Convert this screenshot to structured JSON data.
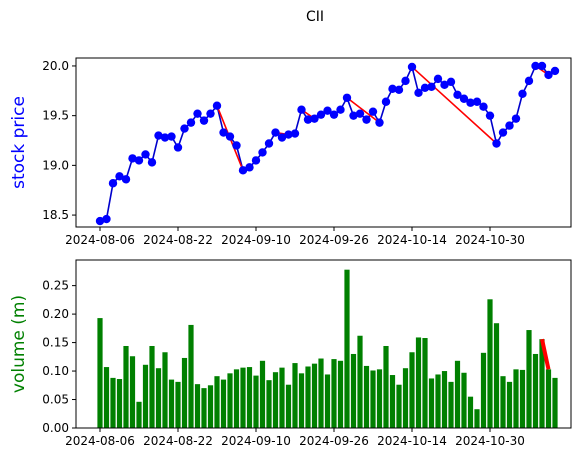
{
  "chart_data": [
    {
      "type": "line",
      "title": "CII",
      "xlabel": "",
      "ylabel": "stock price",
      "ylabel_color": "#0000ff",
      "line_color": "#0000cc",
      "marker_color": "#0000ff",
      "highlight_color": "#ff0000",
      "ylim": [
        18.38,
        20.08
      ],
      "yticks": [
        18.5,
        19.0,
        19.5,
        20.0
      ],
      "xticks": [
        "2024-08-06",
        "2024-08-22",
        "2024-09-10",
        "2024-09-26",
        "2024-10-14",
        "2024-10-30"
      ],
      "xtick_index": [
        0,
        12,
        24,
        36,
        48,
        60
      ],
      "series": [
        {
          "values": [
            18.44,
            18.46,
            18.82,
            18.89,
            18.86,
            19.07,
            19.05,
            19.11,
            19.03,
            19.3,
            19.28,
            19.29,
            19.18,
            19.37,
            19.43,
            19.52,
            19.45,
            19.52,
            19.6,
            19.33,
            19.29,
            19.2,
            18.95,
            18.98,
            19.05,
            19.13,
            19.22,
            19.33,
            19.28,
            19.31,
            19.32,
            19.56,
            19.46,
            19.47,
            19.51,
            19.55,
            19.51,
            19.56,
            19.68,
            19.5,
            19.52,
            19.46,
            19.54,
            19.43,
            19.64,
            19.77,
            19.76,
            19.85,
            19.99,
            19.73,
            19.78,
            19.79,
            19.87,
            19.81,
            19.84,
            19.71,
            19.67,
            19.63,
            19.64,
            19.59,
            19.5,
            19.22,
            19.33,
            19.4,
            19.47,
            19.72,
            19.85,
            20.0,
            20.0,
            19.91,
            19.95
          ]
        }
      ],
      "red_segments": [
        [
          18,
          22
        ],
        [
          27,
          29
        ],
        [
          31,
          33
        ],
        [
          38,
          43
        ],
        [
          48,
          61
        ],
        [
          67,
          69
        ]
      ]
    },
    {
      "type": "bar",
      "title": "",
      "xlabel": "",
      "ylabel": "volume (m)",
      "ylabel_color": "#008000",
      "bar_color": "#008000",
      "highlight_color": "#ff0000",
      "ylim": [
        0.0,
        0.295
      ],
      "yticks": [
        0.0,
        0.05,
        0.1,
        0.15,
        0.2,
        0.25
      ],
      "ytick_labels": [
        "0.00",
        "0.05",
        "0.10",
        "0.15",
        "0.20",
        "0.25"
      ],
      "xticks": [
        "2024-08-06",
        "2024-08-22",
        "2024-09-10",
        "2024-09-26",
        "2024-10-14",
        "2024-10-30"
      ],
      "xtick_index": [
        0,
        12,
        24,
        36,
        48,
        60
      ],
      "values": [
        0.193,
        0.107,
        0.088,
        0.086,
        0.144,
        0.126,
        0.046,
        0.111,
        0.144,
        0.105,
        0.133,
        0.085,
        0.081,
        0.123,
        0.181,
        0.077,
        0.07,
        0.075,
        0.091,
        0.085,
        0.096,
        0.103,
        0.106,
        0.107,
        0.092,
        0.118,
        0.084,
        0.098,
        0.106,
        0.076,
        0.114,
        0.096,
        0.108,
        0.113,
        0.122,
        0.094,
        0.121,
        0.118,
        0.278,
        0.13,
        0.162,
        0.109,
        0.101,
        0.103,
        0.144,
        0.093,
        0.076,
        0.105,
        0.133,
        0.159,
        0.158,
        0.087,
        0.094,
        0.1,
        0.081,
        0.118,
        0.097,
        0.055,
        0.033,
        0.132,
        0.226,
        0.184,
        0.091,
        0.081,
        0.103,
        0.102,
        0.172,
        0.13,
        0.156,
        0.103,
        0.088
      ],
      "red_segments": [
        [
          68,
          69
        ]
      ]
    }
  ]
}
